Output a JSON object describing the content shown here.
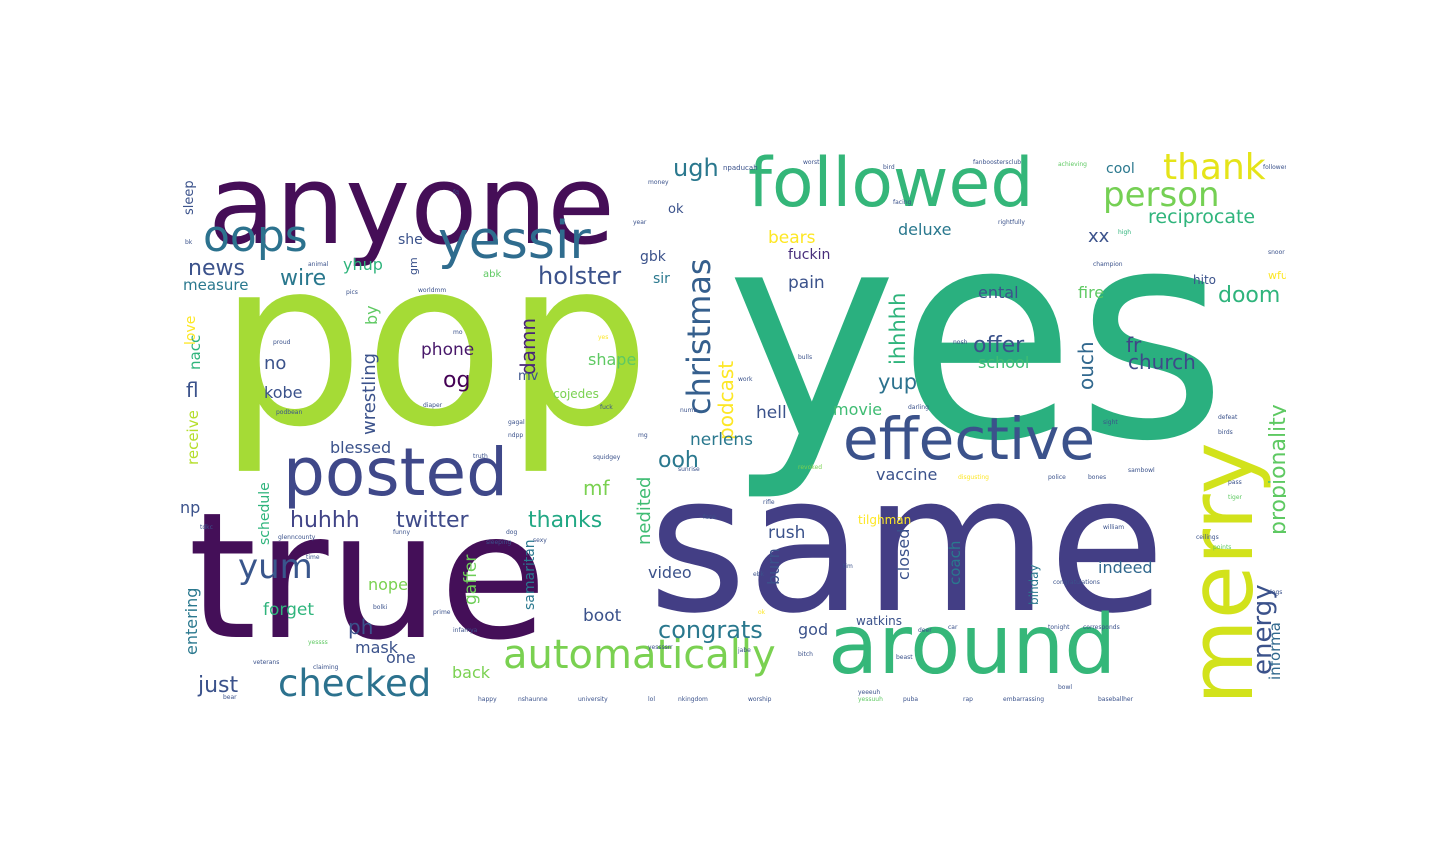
{
  "words": [
    {
      "text": "yes",
      "color": "#2ab07f"
    },
    {
      "text": "pop",
      "color": "#a5db36"
    },
    {
      "text": "same",
      "color": "#433e85"
    },
    {
      "text": "true",
      "color": "#440f58"
    },
    {
      "text": "anyone",
      "color": "#450e57"
    },
    {
      "text": "followed",
      "color": "#34b679"
    },
    {
      "text": "effective",
      "color": "#3b528b"
    },
    {
      "text": "around",
      "color": "#35b779"
    },
    {
      "text": "posted",
      "color": "#3f4889"
    },
    {
      "text": "merry",
      "color": "#d2e21b"
    },
    {
      "text": "yessir",
      "color": "#2f6c8e"
    },
    {
      "text": "oops",
      "color": "#2c728e"
    },
    {
      "text": "automatically",
      "color": "#7ad151"
    },
    {
      "text": "checked",
      "color": "#2c728e"
    },
    {
      "text": "thank",
      "color": "#e5e419"
    },
    {
      "text": "person",
      "color": "#75d054"
    },
    {
      "text": "christmas",
      "color": "#355f8d"
    },
    {
      "text": "podcast",
      "color": "#fde725"
    },
    {
      "text": "energy",
      "color": "#3b528b"
    },
    {
      "text": "propionality",
      "color": "#5ec962"
    },
    {
      "text": "yum",
      "color": "#39568c"
    },
    {
      "text": "congrats",
      "color": "#2a788e"
    },
    {
      "text": "holster",
      "color": "#3b528b"
    },
    {
      "text": "ugh",
      "color": "#2a788e"
    },
    {
      "text": "twitter",
      "color": "#3e4a89"
    },
    {
      "text": "huhhh",
      "color": "#414487"
    },
    {
      "text": "thanks",
      "color": "#22a884"
    },
    {
      "text": "offer",
      "color": "#3b528b"
    },
    {
      "text": "doom",
      "color": "#2fb47c"
    },
    {
      "text": "ihhhhh",
      "color": "#2fb47c"
    },
    {
      "text": "damn",
      "color": "#482677"
    },
    {
      "text": "news",
      "color": "#3b528b"
    },
    {
      "text": "wire",
      "color": "#2a788e"
    },
    {
      "text": "reciprocate",
      "color": "#2fb47c"
    },
    {
      "text": "church",
      "color": "#3e4a89"
    },
    {
      "text": "ouch",
      "color": "#31688e"
    },
    {
      "text": "fr",
      "color": "#414487"
    },
    {
      "text": "yup",
      "color": "#2c728e"
    },
    {
      "text": "og",
      "color": "#440154"
    },
    {
      "text": "ooh",
      "color": "#2a788e"
    },
    {
      "text": "nedited",
      "color": "#3fbc73"
    },
    {
      "text": "wrestling",
      "color": "#3b528b"
    },
    {
      "text": "just",
      "color": "#3b528b"
    },
    {
      "text": "mf",
      "color": "#7ad151"
    },
    {
      "text": "phone",
      "color": "#48186a"
    },
    {
      "text": "shape",
      "color": "#5ec962"
    },
    {
      "text": "xx",
      "color": "#3b528b"
    },
    {
      "text": "deluxe",
      "color": "#2a788e"
    },
    {
      "text": "bears",
      "color": "#fde725"
    },
    {
      "text": "fuckin",
      "color": "#472d7b"
    },
    {
      "text": "pain",
      "color": "#3b528b"
    },
    {
      "text": "fire",
      "color": "#5ec962"
    },
    {
      "text": "ental",
      "color": "#3b528b"
    },
    {
      "text": "school",
      "color": "#3fbc73"
    },
    {
      "text": "movie",
      "color": "#3fbc73"
    },
    {
      "text": "hell",
      "color": "#3b528b"
    },
    {
      "text": "nerlens",
      "color": "#2a788e"
    },
    {
      "text": "vaccine",
      "color": "#3b528b"
    },
    {
      "text": "rush",
      "color": "#3b528b"
    },
    {
      "text": "burn",
      "color": "#3b528b"
    },
    {
      "text": "closed",
      "color": "#3b528b"
    },
    {
      "text": "coach",
      "color": "#2a788e"
    },
    {
      "text": "indeed",
      "color": "#31688e"
    },
    {
      "text": "informa",
      "color": "#31688e"
    },
    {
      "text": "video",
      "color": "#3b528b"
    },
    {
      "text": "samaritan",
      "color": "#2a788e"
    },
    {
      "text": "gaffer",
      "color": "#6ece58"
    },
    {
      "text": "god",
      "color": "#3b528b"
    },
    {
      "text": "boot",
      "color": "#3b528b"
    },
    {
      "text": "back",
      "color": "#7ad151"
    },
    {
      "text": "nope",
      "color": "#7ad151"
    },
    {
      "text": "forget",
      "color": "#2fb47c"
    },
    {
      "text": "ph",
      "color": "#3b528b"
    },
    {
      "text": "mask",
      "color": "#3b528b"
    },
    {
      "text": "one",
      "color": "#3b528b"
    },
    {
      "text": "entering",
      "color": "#2a788e"
    },
    {
      "text": "schedule",
      "color": "#2fb47c"
    },
    {
      "text": "blessed",
      "color": "#3b528b"
    },
    {
      "text": "kobe",
      "color": "#3b528b"
    },
    {
      "text": "no",
      "color": "#3b528b"
    },
    {
      "text": "fl",
      "color": "#3b528b"
    },
    {
      "text": "receive",
      "color": "#b5de2b"
    },
    {
      "text": "np",
      "color": "#3b528b"
    },
    {
      "text": "yhup",
      "color": "#2fb47c"
    },
    {
      "text": "she",
      "color": "#3b528b"
    },
    {
      "text": "sleep",
      "color": "#3b528b"
    },
    {
      "text": "measure",
      "color": "#2a788e"
    },
    {
      "text": "love",
      "color": "#fde725"
    },
    {
      "text": "nacc",
      "color": "#2fb47c"
    },
    {
      "text": "by",
      "color": "#5ec962"
    },
    {
      "text": "gbk",
      "color": "#3b528b"
    },
    {
      "text": "ok",
      "color": "#3b528b"
    },
    {
      "text": "sir",
      "color": "#2a788e"
    },
    {
      "text": "mv",
      "color": "#3b528b"
    },
    {
      "text": "cojedes",
      "color": "#7ad151"
    },
    {
      "text": "cool",
      "color": "#2a788e"
    },
    {
      "text": "hito",
      "color": "#3b528b"
    },
    {
      "text": "wfu",
      "color": "#fde725"
    },
    {
      "text": "tilghman",
      "color": "#fde725"
    },
    {
      "text": "watkins",
      "color": "#3b528b"
    },
    {
      "text": "bihday",
      "color": "#2a788e"
    },
    {
      "text": "gm",
      "color": "#3b528b"
    },
    {
      "text": "abk",
      "color": "#5ec962"
    },
    {
      "text": "fanboostersclub",
      "color": "#3b528b"
    },
    {
      "text": "achieving",
      "color": "#5ec962"
    },
    {
      "text": "worst",
      "color": "#3b528b"
    },
    {
      "text": "rightfully",
      "color": "#3b528b"
    },
    {
      "text": "followers",
      "color": "#3b528b"
    },
    {
      "text": "champion",
      "color": "#3b528b"
    },
    {
      "text": "npaducah",
      "color": "#3b528b"
    },
    {
      "text": "worldmm",
      "color": "#3b528b"
    },
    {
      "text": "animal",
      "color": "#3b528b"
    },
    {
      "text": "facing",
      "color": "#3b528b"
    },
    {
      "text": "high",
      "color": "#2fb47c"
    },
    {
      "text": "snoor",
      "color": "#3b528b"
    },
    {
      "text": "year",
      "color": "#3b528b"
    },
    {
      "text": "money",
      "color": "#3b528b"
    },
    {
      "text": "bird",
      "color": "#3b528b"
    },
    {
      "text": "nosh",
      "color": "#3b528b"
    },
    {
      "text": "diaper",
      "color": "#3b528b"
    },
    {
      "text": "fuck",
      "color": "#3b528b"
    },
    {
      "text": "work",
      "color": "#3b528b"
    },
    {
      "text": "bulls",
      "color": "#3b528b"
    },
    {
      "text": "darling",
      "color": "#3b528b"
    },
    {
      "text": "podbean",
      "color": "#3b528b"
    },
    {
      "text": "truth",
      "color": "#3b528b"
    },
    {
      "text": "squidgey",
      "color": "#3b528b"
    },
    {
      "text": "sunrise",
      "color": "#3b528b"
    },
    {
      "text": "numb",
      "color": "#3b528b"
    },
    {
      "text": "revoked",
      "color": "#7ad151"
    },
    {
      "text": "disgusting",
      "color": "#fde725"
    },
    {
      "text": "police",
      "color": "#3b528b"
    },
    {
      "text": "bones",
      "color": "#3b528b"
    },
    {
      "text": "sambowl",
      "color": "#3b528b"
    },
    {
      "text": "pass",
      "color": "#3b528b"
    },
    {
      "text": "tiger",
      "color": "#5ec962"
    },
    {
      "text": "rifle",
      "color": "#3b528b"
    },
    {
      "text": "face",
      "color": "#3b528b"
    },
    {
      "text": "william",
      "color": "#3b528b"
    },
    {
      "text": "ceilings",
      "color": "#3b528b"
    },
    {
      "text": "points",
      "color": "#5ec962"
    },
    {
      "text": "dogs",
      "color": "#3b528b"
    },
    {
      "text": "tdkc",
      "color": "#3b528b"
    },
    {
      "text": "glenncounty",
      "color": "#3b528b"
    },
    {
      "text": "funny",
      "color": "#3b528b"
    },
    {
      "text": "dog",
      "color": "#3b528b"
    },
    {
      "text": "sleeping",
      "color": "#3b528b"
    },
    {
      "text": "sexy",
      "color": "#3b528b"
    },
    {
      "text": "tonight",
      "color": "#3b528b"
    },
    {
      "text": "corresponds",
      "color": "#3b528b"
    },
    {
      "text": "deer",
      "color": "#3b528b"
    },
    {
      "text": "car",
      "color": "#3b528b"
    },
    {
      "text": "time",
      "color": "#3b528b"
    },
    {
      "text": "tim",
      "color": "#3b528b"
    },
    {
      "text": "ebk",
      "color": "#3b528b"
    },
    {
      "text": "ok",
      "color": "#fde725"
    },
    {
      "text": "bolki",
      "color": "#3b528b"
    },
    {
      "text": "prime",
      "color": "#3b528b"
    },
    {
      "text": "jabe",
      "color": "#3b528b"
    },
    {
      "text": "bitch",
      "color": "#3b528b"
    },
    {
      "text": "beast",
      "color": "#3b528b"
    },
    {
      "text": "yessuuh",
      "color": "#5ec962"
    },
    {
      "text": "nshaunne",
      "color": "#3b528b"
    },
    {
      "text": "university",
      "color": "#3b528b"
    },
    {
      "text": "lol",
      "color": "#3b528b"
    },
    {
      "text": "nkingdom",
      "color": "#3b528b"
    },
    {
      "text": "worship",
      "color": "#3b528b"
    },
    {
      "text": "yeeeuh",
      "color": "#3b528b"
    },
    {
      "text": "puba",
      "color": "#3b528b"
    },
    {
      "text": "rap",
      "color": "#3b528b"
    },
    {
      "text": "embarrassing",
      "color": "#3b528b"
    },
    {
      "text": "bowl",
      "color": "#3b528b"
    },
    {
      "text": "baseballher",
      "color": "#3b528b"
    },
    {
      "text": "happy",
      "color": "#3b528b"
    },
    {
      "text": "bear",
      "color": "#3b528b"
    },
    {
      "text": "veterans",
      "color": "#3b528b"
    },
    {
      "text": "claiming",
      "color": "#3b528b"
    },
    {
      "text": "yessss",
      "color": "#5ec962"
    },
    {
      "text": "infamya",
      "color": "#3b528b"
    },
    {
      "text": "yessssrr",
      "color": "#3b528b"
    },
    {
      "text": "congratulations",
      "color": "#3b528b"
    },
    {
      "text": "proud",
      "color": "#3b528b"
    },
    {
      "text": "defeat",
      "color": "#3b528b"
    },
    {
      "text": "birds",
      "color": "#3b528b"
    },
    {
      "text": "sight",
      "color": "#3b528b"
    },
    {
      "text": "gagal",
      "color": "#3b528b"
    },
    {
      "text": "ndpp",
      "color": "#3b528b"
    },
    {
      "text": "yes",
      "color": "#fde725"
    },
    {
      "text": "pics",
      "color": "#3b528b"
    },
    {
      "text": "mg",
      "color": "#3b528b"
    },
    {
      "text": "mo",
      "color": "#3b528b"
    },
    {
      "text": "fq",
      "color": "#3b528b"
    },
    {
      "text": "bk",
      "color": "#3b528b"
    }
  ]
}
